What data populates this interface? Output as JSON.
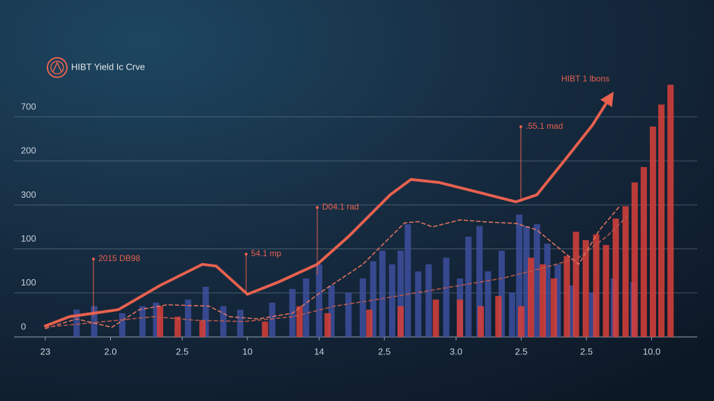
{
  "chart_data": {
    "type": "combo",
    "title": "HIBT Yield Ic Crve",
    "annotations": [
      "2015 DB98",
      "54.1 mp",
      "D04.1 rad",
      ".55.1 mad",
      "HIBT 1 lbons"
    ],
    "xlim": [
      0,
      100
    ],
    "xticks": [
      {
        "value": 0,
        "label": "23"
      },
      {
        "value": 10,
        "label": "2.0"
      },
      {
        "value": 21,
        "label": "2.5"
      },
      {
        "value": 31,
        "label": "10"
      },
      {
        "value": 42,
        "label": "14"
      },
      {
        "value": 52,
        "label": "2.5"
      },
      {
        "value": 63,
        "label": "3.0"
      },
      {
        "value": 73,
        "label": "2.5"
      },
      {
        "value": 83,
        "label": "2.5"
      },
      {
        "value": 93,
        "label": "10.0"
      }
    ],
    "ylim": [
      0,
      620
    ],
    "yticks": [
      0,
      100,
      {
        "value": 200,
        "label": "100"
      },
      300,
      {
        "value": 400,
        "label": "200"
      },
      {
        "value": 500,
        "label": "700"
      }
    ],
    "grid": true,
    "series": [
      {
        "type": "bar",
        "color": "#3d4f9e",
        "x": [
          4.8,
          7.5,
          11.8,
          14.9,
          17,
          21.9,
          24.6,
          27.3,
          29.9,
          34.8,
          37.9,
          40,
          42,
          43.9,
          46.5,
          48.7,
          50.3,
          51.7,
          53.2,
          54.5,
          55.6,
          57.2,
          58.8,
          61.5,
          63.6,
          64.9,
          66.6,
          67.9,
          70,
          71.6,
          72.7,
          73.8,
          75.4,
          77,
          78.6,
          80.7,
          83.9,
          87.2,
          90.2
        ],
        "values": [
          62,
          70,
          54,
          70,
          78,
          85,
          114,
          70,
          62,
          78,
          109,
          133,
          165,
          117,
          101,
          133,
          172,
          196,
          165,
          196,
          256,
          149,
          165,
          180,
          133,
          228,
          252,
          149,
          196,
          101,
          278,
          252,
          256,
          212,
          165,
          117,
          101,
          133,
          125
        ]
      },
      {
        "type": "bar",
        "color": "#d9403a",
        "x": [
          17.6,
          20.3,
          24.1,
          33.7,
          39,
          43.3,
          49.7,
          54.5,
          59.9,
          63.6,
          66.8,
          69.5,
          73,
          74.5,
          76.3,
          78,
          80,
          81.4,
          82.9,
          84.5,
          86,
          87.5,
          89,
          90.4,
          91.8,
          93.2,
          94.5,
          95.9
        ],
        "values": [
          70,
          46,
          38,
          35,
          70,
          54,
          62,
          70,
          85,
          85,
          70,
          93,
          70,
          180,
          165,
          133,
          184,
          239,
          220,
          233,
          209,
          269,
          297,
          351,
          386,
          478,
          528,
          573
        ]
      },
      {
        "type": "line",
        "color": "#e8614f",
        "dashed": false,
        "arrow": true,
        "x": [
          0,
          3.7,
          11.2,
          17.6,
          24.1,
          26.2,
          31,
          35.8,
          41.7,
          46.5,
          52.9,
          56.1,
          60.4,
          65.8,
          72.2,
          75.4,
          79.7,
          83.9,
          86.6
        ],
        "values": [
          25,
          46,
          62,
          117,
          165,
          161,
          97,
          125,
          165,
          228,
          323,
          358,
          351,
          331,
          307,
          323,
          402,
          481,
          544
        ]
      },
      {
        "type": "line",
        "color": "#e2735f",
        "dashed": true,
        "arrow": false,
        "x": [
          0,
          4.8,
          10.2,
          14.4,
          18.7,
          25.1,
          28.3,
          32.6,
          37.9,
          42.2,
          48.7,
          55.1,
          57.2,
          59.4,
          63.6,
          67.9,
          72.2,
          75.4,
          78.6,
          81.8,
          85,
          88.2
        ],
        "values": [
          19,
          41,
          22,
          62,
          73,
          70,
          46,
          41,
          54,
          101,
          165,
          259,
          262,
          250,
          266,
          261,
          258,
          243,
          204,
          165,
          243,
          299
        ]
      },
      {
        "type": "line",
        "color": "#b8574c",
        "dashed": true,
        "arrow": false,
        "x": [
          0,
          9.1,
          16.6,
          23,
          30.5,
          38,
          44.4,
          50.8,
          57.2,
          63.6,
          70,
          76.5,
          81.8,
          86.1,
          89.3
        ],
        "values": [
          22,
          35,
          46,
          38,
          35,
          46,
          70,
          85,
          101,
          117,
          133,
          157,
          180,
          228,
          275
        ]
      }
    ]
  }
}
